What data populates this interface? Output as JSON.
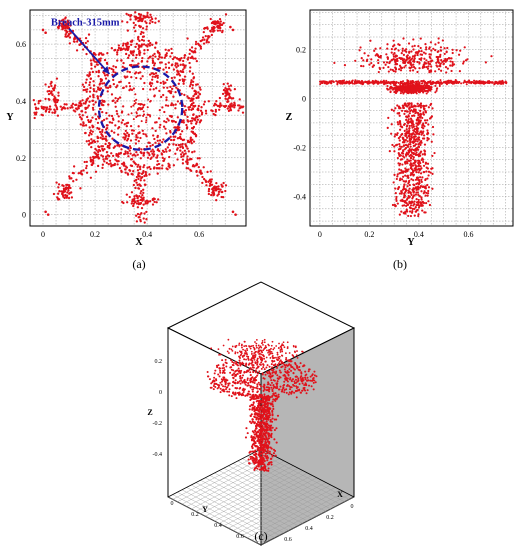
{
  "chart_data": [
    {
      "panel": "a",
      "type": "scatter",
      "caption": "(a)",
      "xlabel": "X",
      "ylabel": "Y",
      "xlim": [
        -0.05,
        0.78
      ],
      "ylim": [
        -0.04,
        0.72
      ],
      "xticks": [
        "0",
        "0.2",
        "0.4",
        "0.6"
      ],
      "xtick_values": [
        0,
        0.2,
        0.4,
        0.6
      ],
      "yticks": [
        "0",
        "0.2",
        "0.4",
        "0.6"
      ],
      "ytick_values": [
        0,
        0.2,
        0.4,
        0.6
      ],
      "grid": true,
      "point_color": "#e0121b",
      "annotation": {
        "text": "Breach-315mm",
        "arrow_from": [
          0.1,
          0.655
        ],
        "arrow_to": [
          0.255,
          0.495
        ],
        "circle_center": [
          0.375,
          0.375
        ],
        "circle_radius": 0.16,
        "color": "#1a1aa8"
      }
    },
    {
      "panel": "b",
      "type": "scatter",
      "caption": "(b)",
      "xlabel": "Y",
      "ylabel": "Z",
      "xlim": [
        -0.04,
        0.78
      ],
      "ylim": [
        -0.52,
        0.36
      ],
      "xticks": [
        "0",
        "0.2",
        "0.4",
        "0.6"
      ],
      "xtick_values": [
        0,
        0.2,
        0.4,
        0.6
      ],
      "yticks": [
        "0.2",
        "0",
        "-0.2",
        "-0.4"
      ],
      "ytick_values": [
        0.2,
        0,
        -0.2,
        -0.4
      ],
      "grid": true,
      "point_color": "#e0121b"
    },
    {
      "panel": "c",
      "type": "scatter",
      "caption": "(c)",
      "xlabel": "X",
      "ylabel": "Y",
      "zlabel": "Z",
      "zticks": [
        "0.2",
        "0",
        "-0.2",
        "-0.4"
      ],
      "ztick_values": [
        0.2,
        0,
        -0.2,
        -0.4
      ],
      "yticks": [
        "0",
        "0.2",
        "0.4",
        "0.6"
      ],
      "xticks": [
        "0",
        "0.2",
        "0.4",
        "0.6"
      ],
      "point_color": "#e0121b",
      "wall_color": "#b4b4b4"
    }
  ]
}
